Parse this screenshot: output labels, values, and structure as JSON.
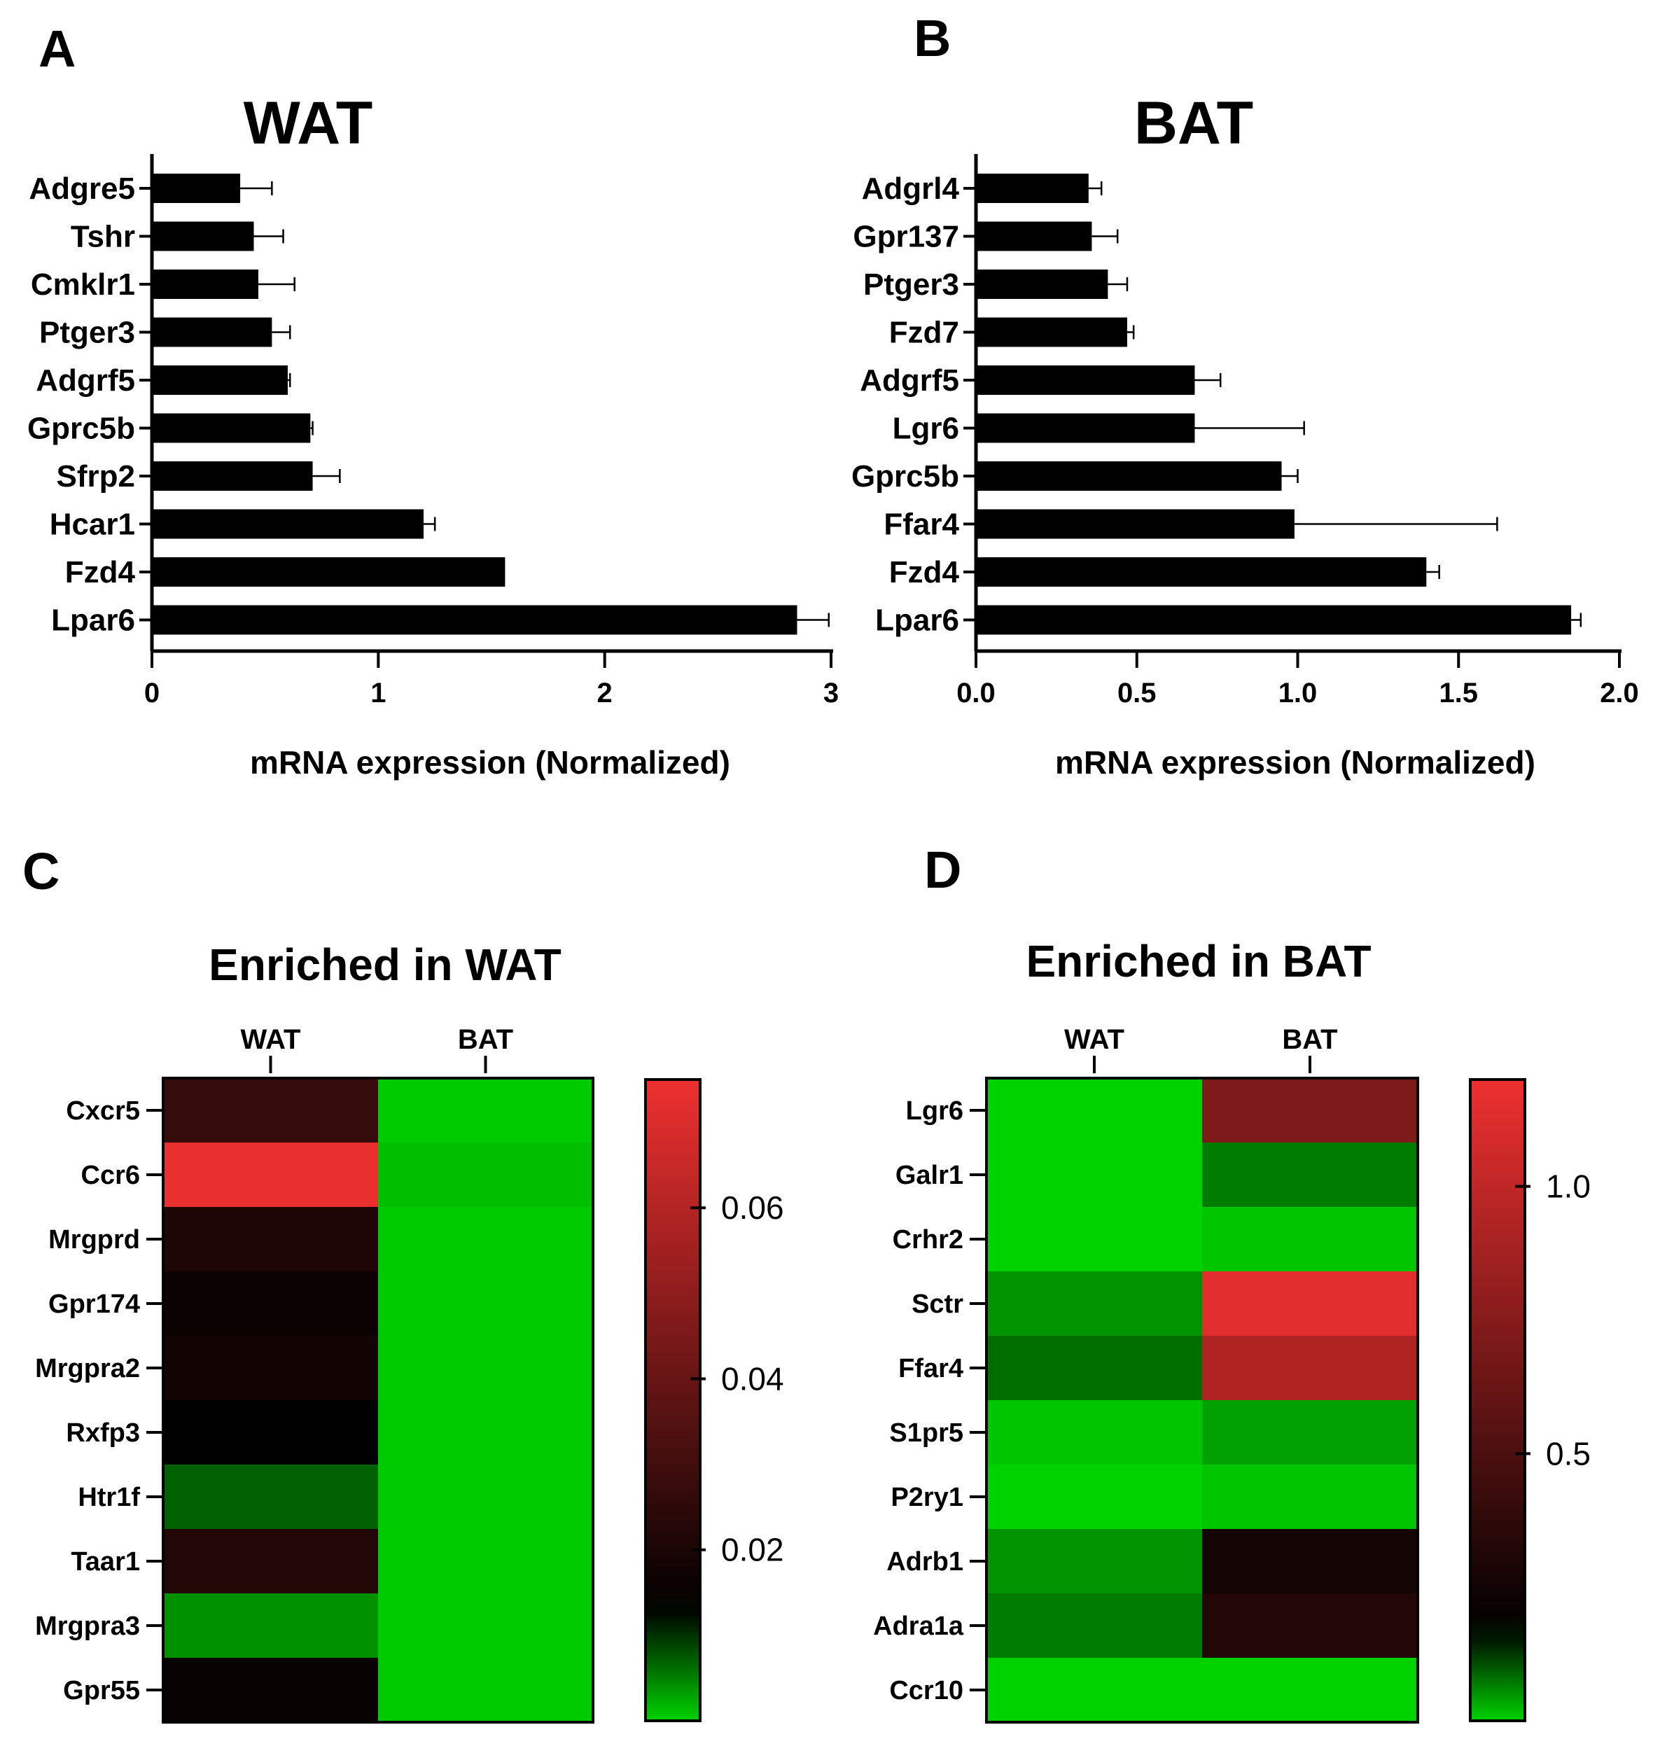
{
  "colors": {
    "bar": "#000000",
    "heat_low": "#00d200",
    "heat_mid": "#000000",
    "heat_high": "#ee3030"
  },
  "chart_data": [
    {
      "panel": "A",
      "type": "bar",
      "orientation": "horizontal",
      "title": "WAT",
      "categories": [
        "Adgre5",
        "Tshr",
        "Cmklr1",
        "Ptger3",
        "Adgrf5",
        "Gprc5b",
        "Sfrp2",
        "Hcar1",
        "Fzd4",
        "Lpar6"
      ],
      "values": [
        0.39,
        0.45,
        0.47,
        0.53,
        0.6,
        0.7,
        0.71,
        1.2,
        1.56,
        2.85
      ],
      "errors": [
        0.14,
        0.13,
        0.16,
        0.08,
        0.01,
        0.01,
        0.12,
        0.05,
        0.0,
        0.14
      ],
      "xlabel": "mRNA expression (Normalized)",
      "xlim": [
        0,
        3
      ],
      "xticks": [
        "0",
        "1",
        "2",
        "3"
      ]
    },
    {
      "panel": "B",
      "type": "bar",
      "orientation": "horizontal",
      "title": "BAT",
      "categories": [
        "Adgrl4",
        "Gpr137",
        "Ptger3",
        "Fzd7",
        "Adgrf5",
        "Lgr6",
        "Gprc5b",
        "Ffar4",
        "Fzd4",
        "Lpar6"
      ],
      "values": [
        0.35,
        0.36,
        0.41,
        0.47,
        0.68,
        0.68,
        0.95,
        0.99,
        1.4,
        1.85
      ],
      "errors": [
        0.04,
        0.08,
        0.06,
        0.02,
        0.08,
        0.34,
        0.05,
        0.63,
        0.04,
        0.03
      ],
      "xlabel": "mRNA expression (Normalized)",
      "xlim": [
        0,
        2
      ],
      "xticks": [
        "0.0",
        "0.5",
        "1.0",
        "1.5",
        "2.0"
      ]
    },
    {
      "panel": "C",
      "type": "heatmap",
      "title": "Enriched in WAT",
      "columns": [
        "WAT",
        "BAT"
      ],
      "rows": [
        "Cxcr5",
        "Ccr6",
        "Mrgprd",
        "Gpr174",
        "Mrgpra2",
        "Rxfp3",
        "Htr1f",
        "Taar1",
        "Mrgpra3",
        "Gpr55"
      ],
      "values": [
        [
          0.027,
          0.0005
        ],
        [
          0.074,
          0.0012
        ],
        [
          0.021,
          0.0005
        ],
        [
          0.016,
          0.0005
        ],
        [
          0.018,
          0.0005
        ],
        [
          0.013,
          0.0005
        ],
        [
          0.007,
          0.0005
        ],
        [
          0.022,
          0.0005
        ],
        [
          0.004,
          0.0005
        ],
        [
          0.015,
          0.0005
        ]
      ],
      "colorbar": {
        "min": 0,
        "max": 0.075,
        "mid": 0.013,
        "ticks": [
          0.02,
          0.04,
          0.06
        ],
        "tick_labels": [
          "0.02",
          "0.04",
          "0.06"
        ]
      }
    },
    {
      "panel": "D",
      "type": "heatmap",
      "title": "Enriched in BAT",
      "columns": [
        "WAT",
        "BAT"
      ],
      "rows": [
        "Lgr6",
        "Galr1",
        "Crhr2",
        "Sctr",
        "Ffar4",
        "S1pr5",
        "P2ry1",
        "Adrb1",
        "Adra1a",
        "Ccr10"
      ],
      "values": [
        [
          0.0,
          0.72
        ],
        [
          0.0,
          0.07
        ],
        [
          0.0,
          0.01
        ],
        [
          0.05,
          1.15
        ],
        [
          0.08,
          0.93
        ],
        [
          0.01,
          0.04
        ],
        [
          0.0,
          0.01
        ],
        [
          0.05,
          0.26
        ],
        [
          0.07,
          0.32
        ],
        [
          0.0,
          0.0
        ]
      ],
      "colorbar": {
        "min": 0,
        "max": 1.2,
        "mid": 0.17,
        "ticks": [
          0.5,
          1.0
        ],
        "tick_labels": [
          "0.5",
          "1.0"
        ]
      }
    }
  ]
}
